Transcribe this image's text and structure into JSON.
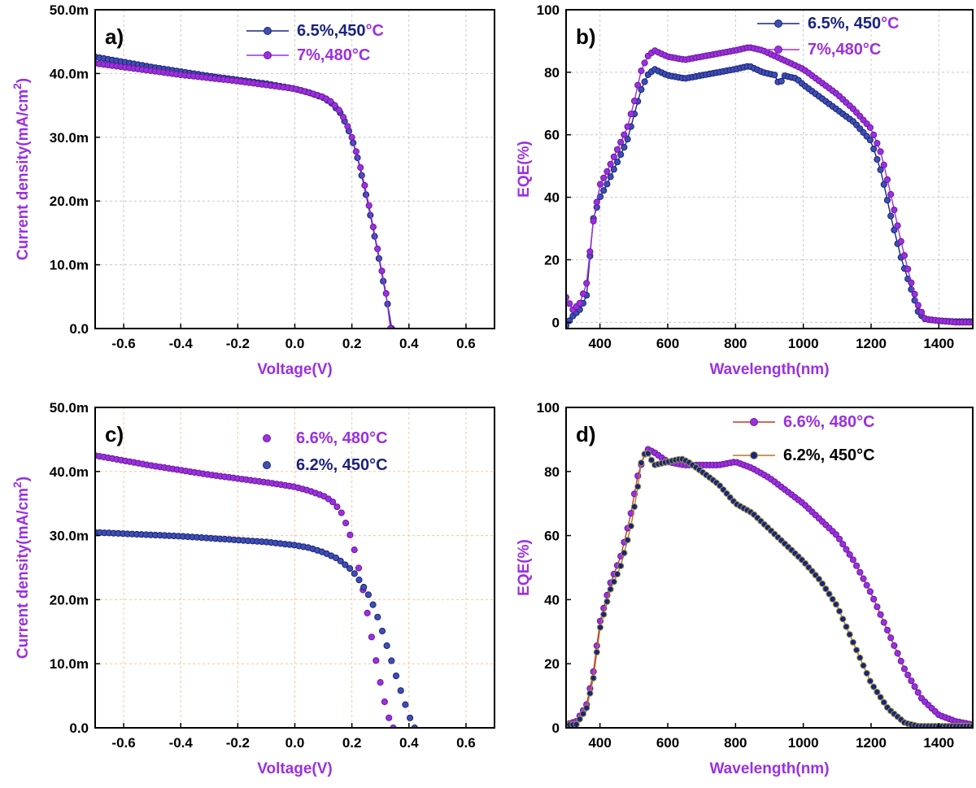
{
  "colors": {
    "purple": "#9b30e0",
    "navy": "#1a237e",
    "label_purple": "#9b30e0",
    "olive": "#9a9a3c",
    "light_navy": "#3f4fb0"
  },
  "chart_data": [
    {
      "id": "a",
      "type": "line",
      "panel_label": "a)",
      "xlabel": "Voltage(V)",
      "ylabel_main": "Current density(mA/cm",
      "ylabel_sup": "2",
      "ylabel_tail": ")",
      "xlim": [
        -0.7,
        0.7
      ],
      "ylim": [
        0,
        50
      ],
      "xticks": [
        -0.6,
        -0.4,
        -0.2,
        0.0,
        0.2,
        0.4,
        0.6
      ],
      "xtick_labels": [
        "-0.6",
        "-0.4",
        "-0.2",
        "0.0",
        "0.2",
        "0.4",
        "0.6"
      ],
      "yticks": [
        0,
        10,
        20,
        30,
        40,
        50
      ],
      "ytick_labels": [
        "0.0",
        "10.0m",
        "20.0m",
        "30.0m",
        "40.0m",
        "50.0m"
      ],
      "grid": "gray",
      "series": [
        {
          "name": "6.5%,450",
          "legend_unit": "°C",
          "style": "navy",
          "x": [
            -0.7,
            -0.6,
            -0.5,
            -0.4,
            -0.3,
            -0.2,
            -0.1,
            0.0,
            0.05,
            0.1,
            0.13,
            0.16,
            0.18,
            0.2,
            0.22,
            0.24,
            0.26,
            0.28,
            0.3,
            0.32,
            0.335,
            0.34
          ],
          "y": [
            42.6,
            41.8,
            41.0,
            40.3,
            39.6,
            39.0,
            38.4,
            37.6,
            37.0,
            36.2,
            35.3,
            33.8,
            32.0,
            29.8,
            26.7,
            23.0,
            18.8,
            14.4,
            9.8,
            5.0,
            1.5,
            0.0
          ]
        },
        {
          "name": "7%,480°C",
          "legend_unit": "",
          "style": "purple",
          "x": [
            -0.7,
            -0.6,
            -0.5,
            -0.4,
            -0.3,
            -0.2,
            -0.1,
            0.0,
            0.05,
            0.1,
            0.13,
            0.16,
            0.18,
            0.2,
            0.22,
            0.24,
            0.26,
            0.28,
            0.3,
            0.32,
            0.335
          ],
          "y": [
            41.6,
            41.0,
            40.4,
            39.8,
            39.3,
            38.8,
            38.2,
            37.6,
            37.0,
            36.3,
            35.5,
            34.0,
            32.3,
            30.0,
            27.0,
            23.5,
            19.3,
            14.8,
            10.2,
            5.5,
            0.0
          ]
        }
      ]
    },
    {
      "id": "b",
      "type": "line",
      "panel_label": "b)",
      "xlabel": "Wavelength(nm)",
      "ylabel_main": "EQE(%)",
      "ylabel_sup": "",
      "ylabel_tail": "",
      "xlim": [
        300,
        1500
      ],
      "ylim": [
        -2,
        100
      ],
      "xticks": [
        400,
        600,
        800,
        1000,
        1200,
        1400
      ],
      "xtick_labels": [
        "400",
        "600",
        "800",
        "1000",
        "1200",
        "1400"
      ],
      "yticks": [
        0,
        20,
        40,
        60,
        80,
        100
      ],
      "ytick_labels": [
        "0",
        "20",
        "40",
        "60",
        "80",
        "100"
      ],
      "grid": "gray",
      "series": [
        {
          "name": "6.5%, 450",
          "legend_unit": "°C",
          "style": "navy",
          "x": [
            300,
            320,
            340,
            360,
            380,
            400,
            420,
            450,
            480,
            500,
            520,
            540,
            560,
            580,
            600,
            650,
            700,
            750,
            800,
            840,
            880,
            920,
            930,
            940,
            980,
            1000,
            1050,
            1100,
            1150,
            1200,
            1230,
            1260,
            1290,
            1320,
            1340,
            1360,
            1400,
            1450,
            1500
          ],
          "y": [
            -1,
            2,
            4,
            8,
            33,
            40,
            44,
            51,
            58,
            66,
            74,
            79,
            81,
            80,
            79,
            78,
            79,
            80,
            81,
            82,
            80,
            79,
            75,
            79,
            78,
            76,
            72,
            68,
            64,
            58,
            48,
            33,
            20,
            10,
            3,
            1,
            0.5,
            0.2,
            0.2
          ]
        },
        {
          "name": "7%,480°C",
          "legend_unit": "",
          "style": "purple",
          "x": [
            300,
            320,
            340,
            360,
            380,
            400,
            420,
            450,
            480,
            500,
            520,
            540,
            560,
            580,
            600,
            650,
            700,
            750,
            800,
            840,
            880,
            920,
            960,
            1000,
            1050,
            1100,
            1150,
            1200,
            1230,
            1260,
            1290,
            1320,
            1340,
            1360,
            1400,
            1450,
            1500
          ],
          "y": [
            8,
            4,
            6,
            12,
            32,
            44,
            48,
            55,
            62,
            70,
            80,
            85,
            87,
            86,
            85,
            84,
            85,
            86,
            87,
            88,
            87,
            85,
            83,
            81,
            77,
            73,
            68,
            62,
            54,
            40,
            25,
            12,
            5,
            1,
            0.5,
            0,
            0
          ]
        }
      ]
    },
    {
      "id": "c",
      "type": "scatter",
      "panel_label": "c)",
      "xlabel": "Voltage(V)",
      "ylabel_main": "Current density(mA/cm",
      "ylabel_sup": "2",
      "ylabel_tail": ")",
      "xlim": [
        -0.7,
        0.7
      ],
      "ylim": [
        0,
        50
      ],
      "xticks": [
        -0.6,
        -0.4,
        -0.2,
        0.0,
        0.2,
        0.4,
        0.6
      ],
      "xtick_labels": [
        "-0.6",
        "-0.4",
        "-0.2",
        "0.0",
        "0.2",
        "0.4",
        "0.6"
      ],
      "yticks": [
        0,
        10,
        20,
        30,
        40,
        50
      ],
      "ytick_labels": [
        "0.0",
        "10.0m",
        "20.0m",
        "30.0m",
        "40.0m",
        "50.0m"
      ],
      "grid": "orange",
      "series": [
        {
          "name": "6.6%, 480°C",
          "legend_unit": "",
          "style": "purple",
          "x": [
            -0.7,
            -0.6,
            -0.5,
            -0.4,
            -0.3,
            -0.2,
            -0.1,
            0.0,
            0.05,
            0.1,
            0.13,
            0.16,
            0.18,
            0.2,
            0.22,
            0.24,
            0.26,
            0.28,
            0.3,
            0.32,
            0.335,
            0.345
          ],
          "y": [
            42.5,
            41.7,
            40.9,
            40.2,
            39.5,
            38.9,
            38.3,
            37.6,
            37.0,
            36.2,
            35.4,
            33.9,
            31.8,
            29.3,
            25.8,
            21.3,
            16.5,
            11.5,
            7.0,
            3.0,
            0.8,
            0.0
          ]
        },
        {
          "name": "6.2%, 450°C",
          "legend_unit": "",
          "style": "navy",
          "x": [
            -0.7,
            -0.6,
            -0.5,
            -0.4,
            -0.3,
            -0.2,
            -0.1,
            0.0,
            0.05,
            0.1,
            0.15,
            0.2,
            0.23,
            0.26,
            0.28,
            0.3,
            0.32,
            0.34,
            0.36,
            0.38,
            0.4,
            0.41,
            0.42
          ],
          "y": [
            30.5,
            30.3,
            30.1,
            29.9,
            29.6,
            29.3,
            29.0,
            28.5,
            28.1,
            27.4,
            26.4,
            24.6,
            22.8,
            20.6,
            18.6,
            16.0,
            13.2,
            10.3,
            7.4,
            4.6,
            2.0,
            0.8,
            0.0
          ]
        }
      ]
    },
    {
      "id": "d",
      "type": "line",
      "panel_label": "d)",
      "xlabel": "Wavelength(nm)",
      "ylabel_main": "EQE(%)",
      "ylabel_sup": "",
      "ylabel_tail": "",
      "xlim": [
        300,
        1500
      ],
      "ylim": [
        0,
        100
      ],
      "xticks": [
        400,
        600,
        800,
        1000,
        1200,
        1400
      ],
      "xtick_labels": [
        "400",
        "600",
        "800",
        "1000",
        "1200",
        "1400"
      ],
      "yticks": [
        0,
        20,
        40,
        60,
        80,
        100
      ],
      "ytick_labels": [
        "0",
        "20",
        "40",
        "60",
        "80",
        "100"
      ],
      "grid": "none",
      "series": [
        {
          "name": "6.6%, 480°C",
          "legend_unit": "",
          "style": "purple",
          "x": [
            300,
            330,
            360,
            380,
            400,
            430,
            460,
            490,
            510,
            530,
            540,
            560,
            600,
            650,
            700,
            750,
            800,
            850,
            900,
            950,
            1000,
            1050,
            1100,
            1150,
            1200,
            1250,
            1300,
            1350,
            1400,
            1450,
            1500
          ],
          "y": [
            1,
            2,
            7,
            17,
            33,
            45,
            53,
            66,
            78,
            85,
            87,
            86,
            83,
            82,
            82,
            82,
            83,
            81,
            78,
            74,
            70,
            65,
            60,
            52,
            42,
            30,
            18,
            9,
            4,
            2,
            1
          ]
        },
        {
          "name": "6.2%, 450°C",
          "legend_unit": "",
          "style": "navy",
          "x": [
            300,
            330,
            360,
            380,
            400,
            430,
            460,
            490,
            510,
            525,
            540,
            560,
            600,
            640,
            660,
            700,
            750,
            800,
            850,
            900,
            950,
            1000,
            1050,
            1100,
            1150,
            1200,
            1250,
            1300,
            1340,
            1400,
            1450,
            1500
          ],
          "y": [
            1,
            1,
            6,
            15,
            31,
            43,
            50,
            62,
            74,
            85,
            86,
            82,
            83,
            84,
            83,
            80,
            76,
            70,
            67,
            62,
            57,
            52,
            46,
            38,
            26,
            14,
            6,
            1.5,
            0.5,
            0.5,
            0.5,
            0.5
          ]
        }
      ]
    }
  ]
}
